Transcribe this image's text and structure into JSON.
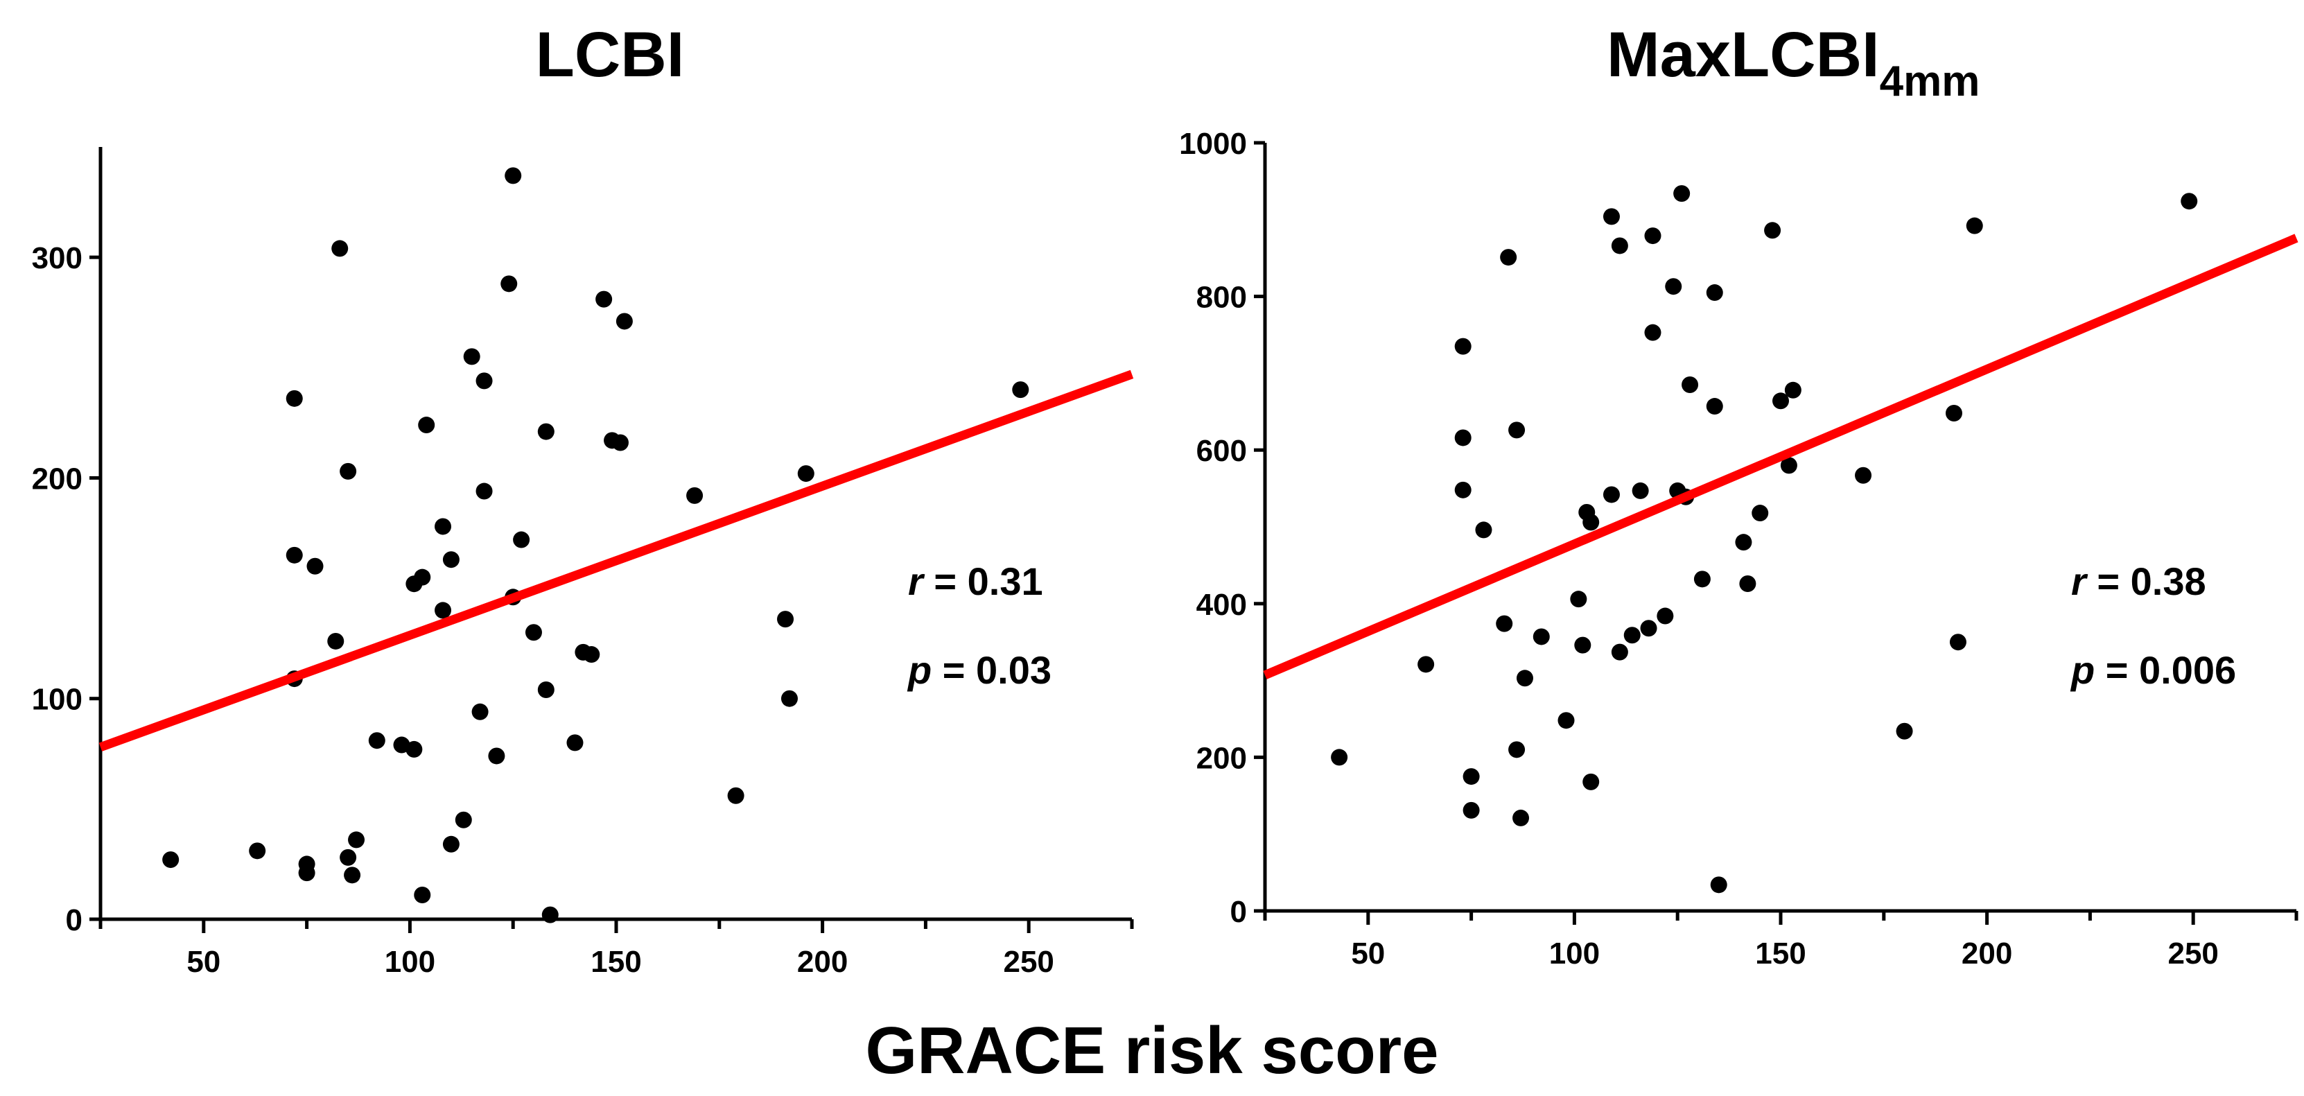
{
  "colors": {
    "points": "#000000",
    "fit_line": "#ff0000",
    "axes": "#000000"
  },
  "shared_xlabel": "GRACE risk score",
  "chart_data": [
    {
      "type": "scatter",
      "title": "LCBI",
      "title_sub": "",
      "xlabel": "GRACE risk score",
      "ylabel": "",
      "xlim": [
        25,
        275
      ],
      "ylim": [
        0,
        350
      ],
      "xticks": [
        50,
        100,
        150,
        200,
        250
      ],
      "yticks": [
        0,
        100,
        200,
        300
      ],
      "fit_line": {
        "x": [
          25,
          275
        ],
        "y": [
          78,
          247
        ]
      },
      "stats": {
        "r_var": "r",
        "r_rest": " = 0.31",
        "p_var": "p",
        "p_rest": " = 0.03"
      },
      "points": [
        [
          42,
          27
        ],
        [
          63,
          31
        ],
        [
          72,
          236
        ],
        [
          72,
          165
        ],
        [
          72,
          109
        ],
        [
          75,
          25
        ],
        [
          75,
          21
        ],
        [
          77,
          160
        ],
        [
          82,
          126
        ],
        [
          83,
          304
        ],
        [
          85,
          203
        ],
        [
          85,
          28
        ],
        [
          86,
          20
        ],
        [
          87,
          36
        ],
        [
          92,
          81
        ],
        [
          98,
          79
        ],
        [
          101,
          152
        ],
        [
          101,
          77
        ],
        [
          103,
          155
        ],
        [
          103,
          11
        ],
        [
          104,
          224
        ],
        [
          108,
          178
        ],
        [
          108,
          140
        ],
        [
          110,
          163
        ],
        [
          110,
          34
        ],
        [
          113,
          45
        ],
        [
          115,
          255
        ],
        [
          117,
          94
        ],
        [
          118,
          244
        ],
        [
          118,
          194
        ],
        [
          121,
          74
        ],
        [
          124,
          288
        ],
        [
          125,
          337
        ],
        [
          125,
          146
        ],
        [
          127,
          172
        ],
        [
          130,
          130
        ],
        [
          133,
          221
        ],
        [
          133,
          104
        ],
        [
          134,
          2
        ],
        [
          140,
          80
        ],
        [
          142,
          121
        ],
        [
          144,
          120
        ],
        [
          147,
          281
        ],
        [
          149,
          217
        ],
        [
          151,
          216
        ],
        [
          152,
          271
        ],
        [
          169,
          192
        ],
        [
          179,
          56
        ],
        [
          191,
          136
        ],
        [
          192,
          100
        ],
        [
          196,
          202
        ],
        [
          248,
          240
        ]
      ]
    },
    {
      "type": "scatter",
      "title": "MaxLCBI",
      "title_sub": "4mm",
      "xlabel": "GRACE risk score",
      "ylabel": "",
      "xlim": [
        25,
        275
      ],
      "ylim": [
        0,
        1000
      ],
      "xticks": [
        50,
        100,
        150,
        200,
        250
      ],
      "yticks": [
        0,
        200,
        400,
        600,
        800,
        1000
      ],
      "fit_line": {
        "x": [
          25,
          275
        ],
        "y": [
          307,
          876
        ]
      },
      "stats": {
        "r_var": "r",
        "r_rest": " = 0.38",
        "p_var": "p",
        "p_rest": " = 0.006"
      },
      "points": [
        [
          43,
          200
        ],
        [
          64,
          321
        ],
        [
          73,
          735
        ],
        [
          73,
          616
        ],
        [
          73,
          548
        ],
        [
          75,
          175
        ],
        [
          75,
          131
        ],
        [
          78,
          496
        ],
        [
          83,
          374
        ],
        [
          84,
          851
        ],
        [
          86,
          626
        ],
        [
          86,
          210
        ],
        [
          87,
          121
        ],
        [
          88,
          303
        ],
        [
          92,
          357
        ],
        [
          98,
          248
        ],
        [
          101,
          406
        ],
        [
          102,
          346
        ],
        [
          103,
          519
        ],
        [
          104,
          168
        ],
        [
          104,
          506
        ],
        [
          109,
          542
        ],
        [
          109,
          904
        ],
        [
          111,
          866
        ],
        [
          111,
          337
        ],
        [
          114,
          359
        ],
        [
          116,
          547
        ],
        [
          118,
          368
        ],
        [
          119,
          879
        ],
        [
          119,
          753
        ],
        [
          122,
          384
        ],
        [
          124,
          813
        ],
        [
          125,
          547
        ],
        [
          126,
          934
        ],
        [
          127,
          539
        ],
        [
          128,
          685
        ],
        [
          131,
          432
        ],
        [
          134,
          805
        ],
        [
          134,
          657
        ],
        [
          135,
          34
        ],
        [
          141,
          480
        ],
        [
          142,
          426
        ],
        [
          145,
          518
        ],
        [
          148,
          886
        ],
        [
          150,
          664
        ],
        [
          152,
          580
        ],
        [
          153,
          678
        ],
        [
          170,
          567
        ],
        [
          180,
          234
        ],
        [
          192,
          648
        ],
        [
          193,
          350
        ],
        [
          197,
          892
        ],
        [
          249,
          924
        ]
      ]
    }
  ]
}
